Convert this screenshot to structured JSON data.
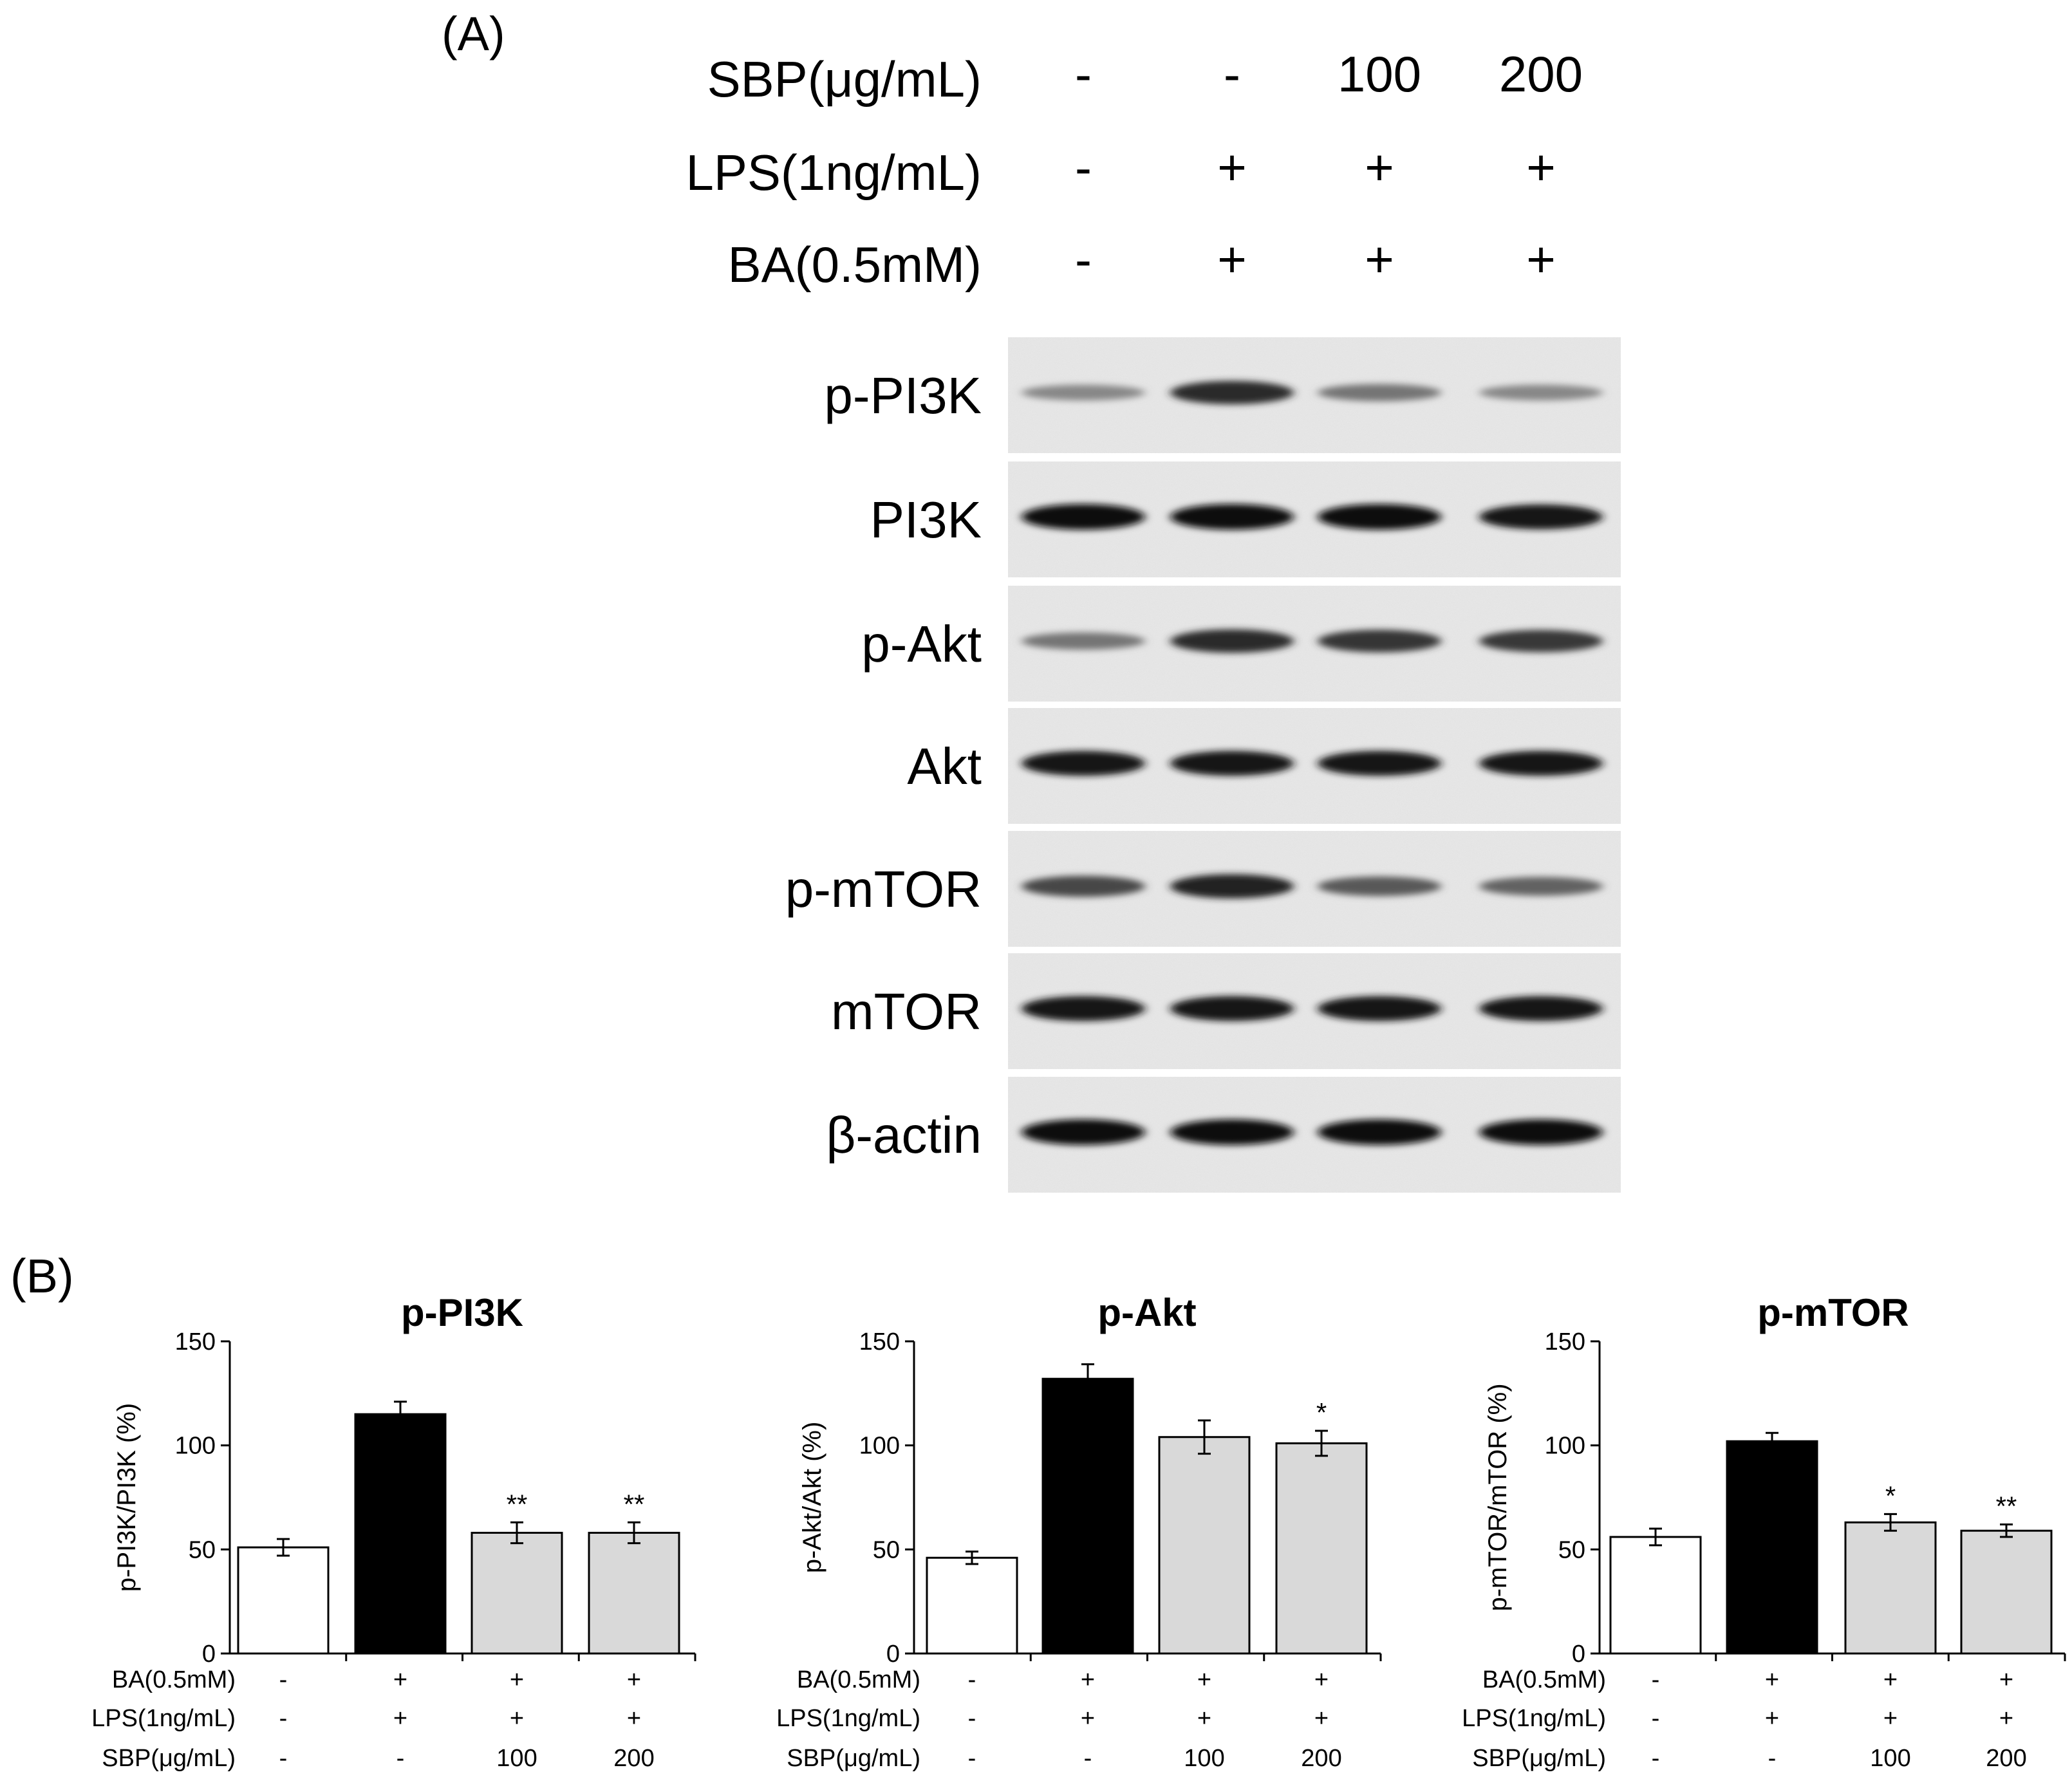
{
  "panel_a": {
    "label": "(A)",
    "conditions": [
      {
        "label": "SBP(μg/mL)",
        "values": [
          "-",
          "-",
          "100",
          "200"
        ]
      },
      {
        "label": "LPS(1ng/mL)",
        "values": [
          "-",
          "+",
          "+",
          "+"
        ]
      },
      {
        "label": "BA(0.5mM)",
        "values": [
          "-",
          "+",
          "+",
          "+"
        ]
      }
    ],
    "blots": [
      {
        "name": "p-PI3K",
        "intensities": [
          0.35,
          0.85,
          0.45,
          0.35
        ]
      },
      {
        "name": "PI3K",
        "intensities": [
          1.0,
          1.0,
          1.0,
          0.95
        ]
      },
      {
        "name": "p-Akt",
        "intensities": [
          0.45,
          0.85,
          0.8,
          0.78
        ]
      },
      {
        "name": "Akt",
        "intensities": [
          0.95,
          0.95,
          0.95,
          0.95
        ]
      },
      {
        "name": "p-mTOR",
        "intensities": [
          0.7,
          0.9,
          0.6,
          0.55
        ]
      },
      {
        "name": "mTOR",
        "intensities": [
          0.95,
          0.95,
          0.95,
          0.95
        ]
      },
      {
        "name": "β-actin",
        "intensities": [
          1.0,
          1.0,
          1.0,
          1.0
        ]
      }
    ]
  },
  "panel_b": {
    "label": "(B)",
    "condition_rows": [
      {
        "label": "BA(0.5mM)",
        "values": [
          "-",
          "+",
          "+",
          "+"
        ]
      },
      {
        "label": "LPS(1ng/mL)",
        "values": [
          "-",
          "+",
          "+",
          "+"
        ]
      },
      {
        "label": "SBP(μg/mL)",
        "values": [
          "-",
          "-",
          "100",
          "200"
        ]
      }
    ]
  },
  "colors": {
    "bar_control": "#ffffff",
    "bar_model": "#000000",
    "bar_treated": "#d9d9d9",
    "axis": "#000000"
  },
  "chart_data": [
    {
      "type": "bar",
      "title": "p-PI3K",
      "ylabel": "p-PI3K/PI3K (%)",
      "ylim": [
        0,
        150
      ],
      "yticks": [
        0,
        50,
        100,
        150
      ],
      "values": [
        51,
        115,
        58,
        58
      ],
      "errors": [
        4,
        6,
        5,
        5
      ],
      "significance": [
        "",
        "",
        "**",
        "**"
      ]
    },
    {
      "type": "bar",
      "title": "p-Akt",
      "ylabel": "p-Akt/Akt (%)",
      "ylim": [
        0,
        150
      ],
      "yticks": [
        0,
        50,
        100,
        150
      ],
      "values": [
        46,
        132,
        104,
        101
      ],
      "errors": [
        3,
        7,
        8,
        6
      ],
      "significance": [
        "",
        "",
        "",
        "*"
      ]
    },
    {
      "type": "bar",
      "title": "p-mTOR",
      "ylabel": "p-mTOR/mTOR (%)",
      "ylim": [
        0,
        150
      ],
      "yticks": [
        0,
        50,
        100,
        150
      ],
      "values": [
        56,
        102,
        63,
        59
      ],
      "errors": [
        4,
        4,
        4,
        3
      ],
      "significance": [
        "",
        "",
        "*",
        "**"
      ]
    }
  ]
}
